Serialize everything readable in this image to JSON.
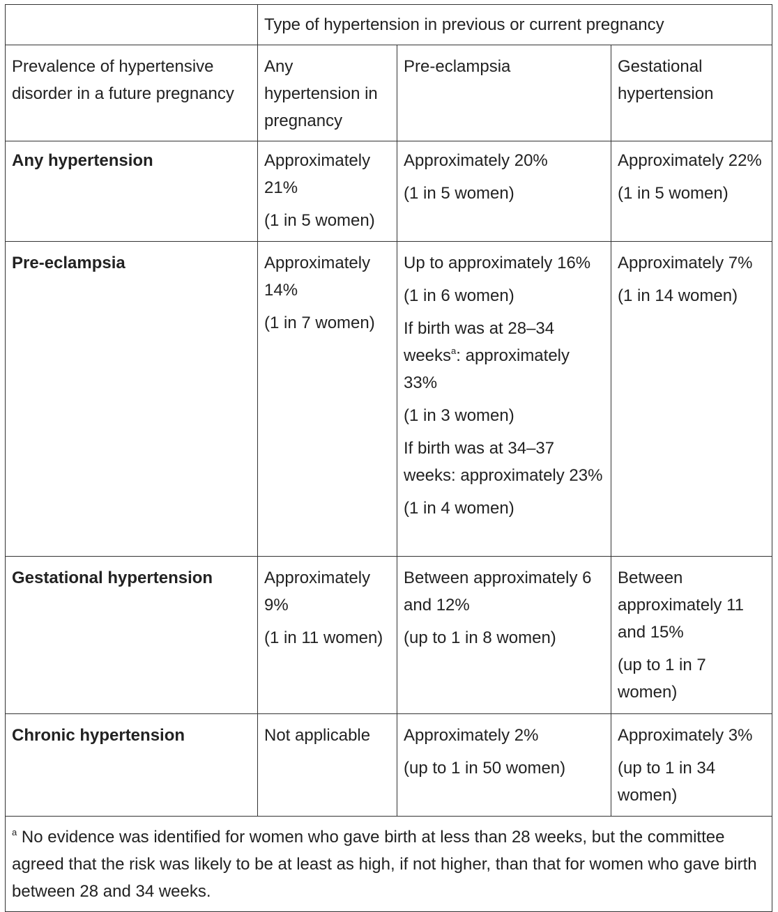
{
  "table": {
    "header_group": "Type of hypertension in previous or current pregnancy",
    "row_header": "Prevalence of hypertensive disorder in a future pregnancy",
    "columns": [
      "Any hypertension in pregnancy",
      "Pre-eclampsia",
      "Gestational hypertension"
    ],
    "rows": [
      {
        "label": "Any hypertension",
        "cells": [
          [
            "Approximately 21%",
            "(1 in 5 women)"
          ],
          [
            "Approximately 20%",
            "(1 in 5 women)"
          ],
          [
            "Approximately 22%",
            "(1 in 5 women)"
          ]
        ]
      },
      {
        "label": "Pre-eclampsia",
        "cells": [
          [
            "Approximately 14%",
            "(1 in 7 women)"
          ],
          [
            "Up to approximately 16%",
            "(1 in 6 women)"
          ],
          [
            "Approximately 7%",
            "(1 in 14 women)"
          ]
        ],
        "extra": {
          "b1_pre": "If birth was at 28–34 weeks",
          "b1_sup": "a",
          "b1_post": ": approximately 33%",
          "b1_ratio": "(1 in 3 women)",
          "b2": "If birth was at 34–37 weeks: approximately 23%",
          "b2_ratio": "(1 in 4 women)"
        }
      },
      {
        "label": "Gestational hypertension",
        "cells": [
          [
            "Approximately 9%",
            "(1 in 11 women)"
          ],
          [
            "Between approximately 6 and 12%",
            "(up to 1 in 8 women)"
          ],
          [
            "Between approximately 11 and 15%",
            "(up to 1 in 7 women)"
          ]
        ]
      },
      {
        "label": "Chronic hypertension",
        "cells": [
          [
            "Not applicable"
          ],
          [
            "Approximately 2%",
            "(up to 1 in 50 women)"
          ],
          [
            "Approximately 3%",
            "(up to 1 in 34 women)"
          ]
        ]
      }
    ],
    "footnote": {
      "marker": "a",
      "text": "No evidence was identified for women who gave birth at less than 28 weeks, but the committee agreed that the risk was likely to be at least as high, if not higher, than that for women who gave birth between 28 and 34 weeks."
    }
  }
}
